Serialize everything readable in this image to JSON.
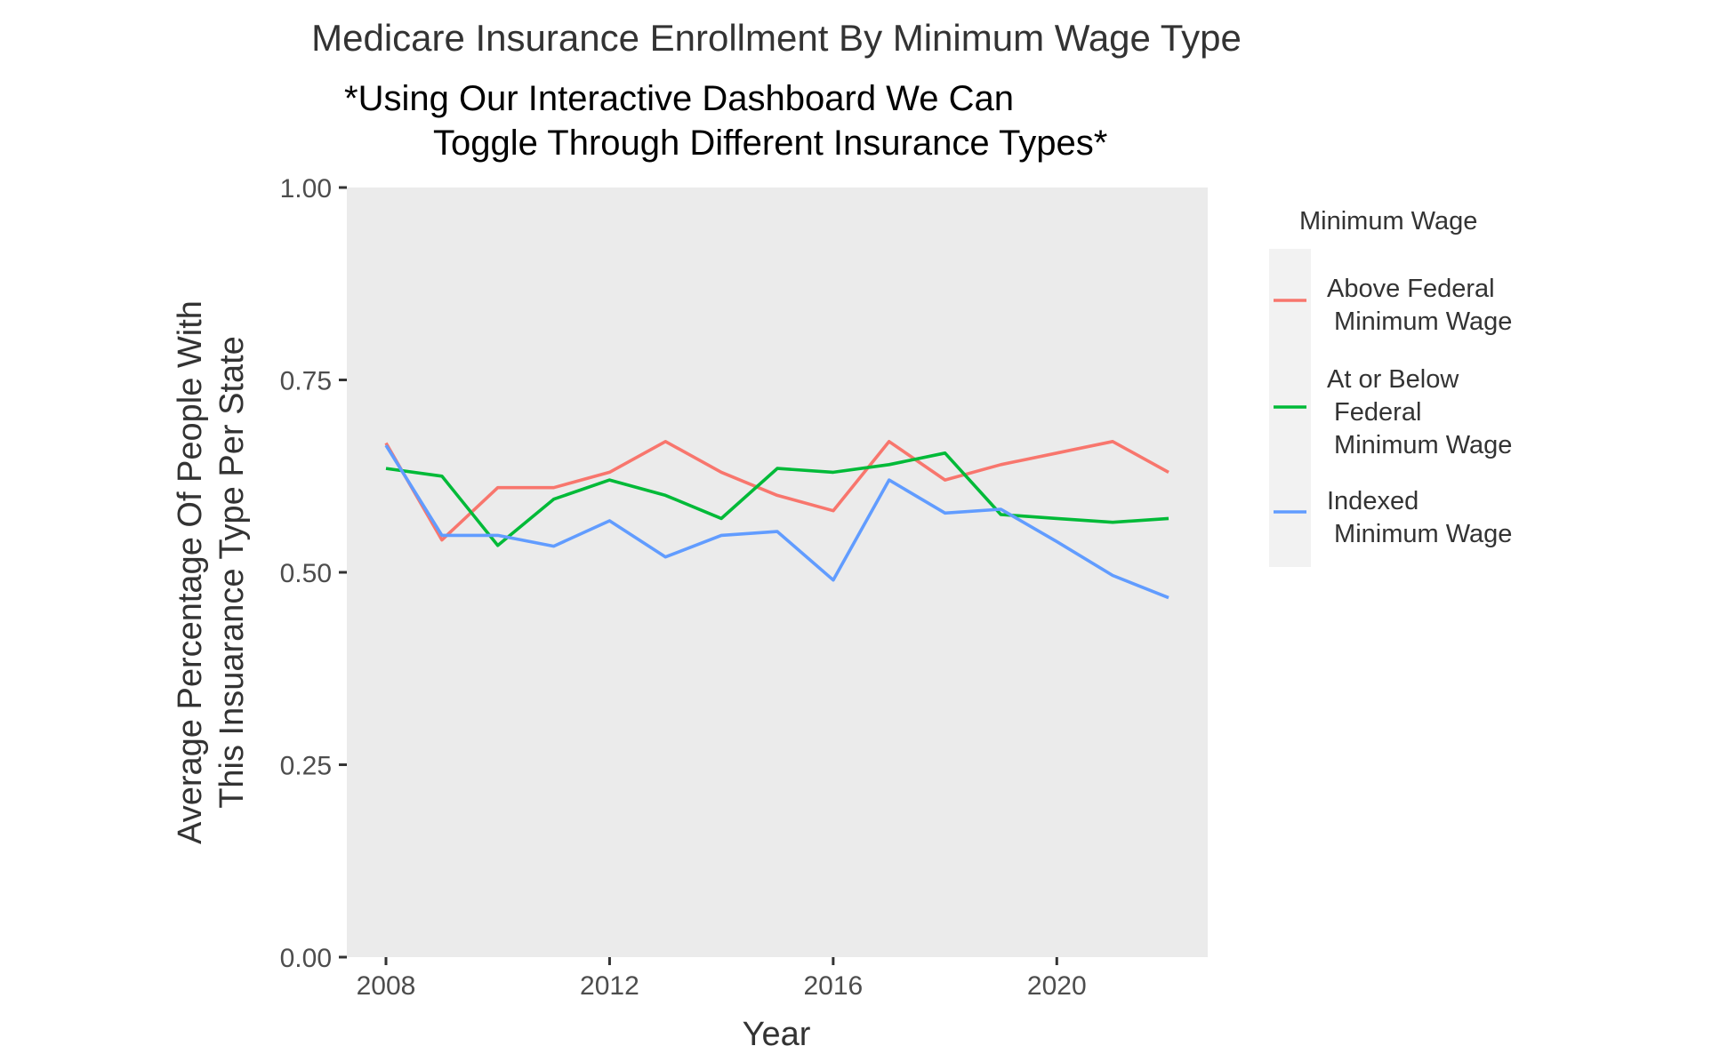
{
  "chart_data": {
    "type": "line",
    "title": "Medicare Insurance Enrollment By Minimum Wage Type",
    "subtitle_lines": [
      "*Using Our Interactive Dashboard We Can",
      "Toggle Through Different Insurance Types*"
    ],
    "xlabel": "Year",
    "ylabel_lines": [
      "Average Percentage Of People With",
      "This Insuarance Type Per State"
    ],
    "xlim": [
      2007.3,
      2022.7
    ],
    "ylim": [
      0,
      1
    ],
    "x_ticks": [
      2008,
      2012,
      2016,
      2020
    ],
    "y_ticks": [
      0,
      0.25,
      0.5,
      0.75,
      1
    ],
    "y_tick_labels": [
      "0.00",
      "0.25",
      "0.50",
      "0.75",
      "1.00"
    ],
    "grid": false,
    "legend": {
      "title": "Minimum Wage",
      "placement": "right"
    },
    "x": [
      2008,
      2009,
      2010,
      2011,
      2012,
      2013,
      2014,
      2015,
      2016,
      2017,
      2018,
      2019,
      2020,
      2021,
      2022
    ],
    "series": [
      {
        "name": "Above Federal Minimum Wage",
        "label_lines": [
          "Above Federal",
          " Minimum Wage"
        ],
        "color": "#F8766D",
        "values": [
          0.668,
          0.542,
          0.61,
          0.61,
          0.63,
          0.67,
          0.63,
          0.6,
          0.58,
          0.67,
          0.62,
          0.64,
          0.655,
          0.67,
          0.63
        ]
      },
      {
        "name": "At or Below Federal Minimum Wage",
        "label_lines": [
          "At or Below",
          " Federal",
          " Minimum Wage"
        ],
        "color": "#00BA38",
        "values": [
          0.635,
          0.625,
          0.535,
          0.595,
          0.62,
          0.6,
          0.57,
          0.635,
          0.63,
          0.64,
          0.655,
          0.575,
          0.57,
          0.565,
          0.57
        ]
      },
      {
        "name": "Indexed Minimum Wage",
        "label_lines": [
          "Indexed",
          " Minimum Wage"
        ],
        "color": "#619CFF",
        "values": [
          0.665,
          0.548,
          0.548,
          0.534,
          0.567,
          0.52,
          0.548,
          0.553,
          0.49,
          0.62,
          0.577,
          0.582,
          0.54,
          0.496,
          0.467
        ]
      }
    ]
  }
}
